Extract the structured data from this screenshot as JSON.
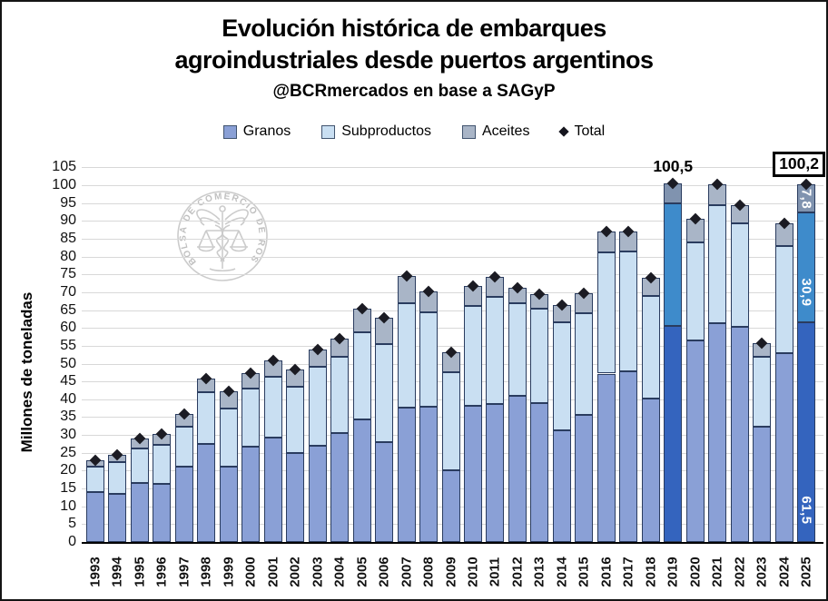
{
  "title": {
    "line1": "Evolución histórica de embarques",
    "line2": "agroindustriales desde puertos argentinos",
    "subtitle": "@BCRmercados en base a SAGyP"
  },
  "legend": {
    "granos": "Granos",
    "subproductos": "Subproductos",
    "aceites": "Aceites",
    "total": "Total"
  },
  "watermark": {
    "seal_text": "BOLSA DE COMERCIO DE ROSARIO"
  },
  "colors": {
    "granos": "#8AA0D6",
    "subproductos": "#C9DFF2",
    "aceites": "#A9B5C7",
    "granos_highlight": "#3464BE",
    "subproductos_highlight": "#3E8BCB",
    "aceites_highlight": "#8093AF",
    "segment_border": "#2A3C5F",
    "marker": "#1B1B23",
    "gridline": "#D8D8D8"
  },
  "chart_data": {
    "type": "bar",
    "stacked": true,
    "title": "Evolución histórica de embarques agroindustriales desde puertos argentinos",
    "subtitle": "@BCRmercados en base a SAGyP",
    "ylabel": "Millones de toneladas",
    "xlabel": "",
    "ylim": [
      0,
      105
    ],
    "ytick_step": 5,
    "grid": true,
    "legend_position": "top",
    "categories": [
      1993,
      1994,
      1995,
      1996,
      1997,
      1998,
      1999,
      2000,
      2001,
      2002,
      2003,
      2004,
      2005,
      2006,
      2007,
      2008,
      2009,
      2010,
      2011,
      2012,
      2013,
      2014,
      2015,
      2016,
      2017,
      2018,
      2019,
      2020,
      2021,
      2022,
      2023,
      2024,
      2025
    ],
    "series": [
      {
        "name": "Granos",
        "values": [
          13.9,
          13.6,
          16.6,
          16.4,
          21.2,
          27.5,
          21.2,
          26.6,
          29.3,
          24.9,
          27.0,
          30.5,
          34.3,
          28.1,
          37.7,
          38.0,
          20.0,
          38.2,
          38.6,
          41.0,
          39.0,
          31.4,
          35.6,
          47.2,
          47.9,
          40.2,
          60.6,
          56.4,
          61.2,
          60.2,
          32.4,
          52.8,
          61.5
        ]
      },
      {
        "name": "Subproductos",
        "values": [
          7.1,
          8.7,
          9.7,
          10.8,
          11.1,
          14.5,
          16.3,
          16.3,
          17.1,
          18.5,
          22.1,
          21.3,
          24.5,
          27.3,
          29.3,
          26.3,
          27.6,
          27.9,
          30.1,
          26.0,
          26.5,
          30.2,
          28.6,
          34.0,
          33.5,
          28.7,
          34.4,
          27.5,
          33.2,
          29.0,
          19.5,
          30.1,
          30.9
        ]
      },
      {
        "name": "Aceites",
        "values": [
          1.8,
          2.2,
          2.7,
          3.1,
          3.7,
          3.8,
          4.8,
          4.5,
          4.4,
          4.9,
          4.8,
          5.1,
          6.7,
          7.4,
          7.5,
          6.0,
          5.7,
          5.6,
          5.6,
          4.3,
          4.0,
          4.8,
          5.6,
          5.8,
          5.6,
          5.2,
          5.5,
          6.6,
          5.9,
          5.2,
          3.9,
          6.5,
          7.8
        ]
      }
    ],
    "totals": [
      22.8,
      24.5,
      29.0,
      30.3,
      36.0,
      45.8,
      42.3,
      47.4,
      50.8,
      48.3,
      53.9,
      56.9,
      65.5,
      62.8,
      74.5,
      70.3,
      53.3,
      71.7,
      74.3,
      71.3,
      69.5,
      66.4,
      69.8,
      87.0,
      87.0,
      74.1,
      100.5,
      90.5,
      100.3,
      94.4,
      55.8,
      89.4,
      100.2
    ],
    "highlight_categories": [
      2019,
      2025
    ],
    "annotations": [
      {
        "category": 2019,
        "text": "100,5",
        "style": "plain"
      },
      {
        "category": 2025,
        "text": "100,2",
        "style": "boxed"
      }
    ],
    "segment_labels": [
      {
        "category": 2025,
        "series": "Granos",
        "text": "61,5"
      },
      {
        "category": 2025,
        "series": "Subproductos",
        "text": "30,9"
      },
      {
        "category": 2025,
        "series": "Aceites",
        "text": "7,8"
      }
    ]
  }
}
